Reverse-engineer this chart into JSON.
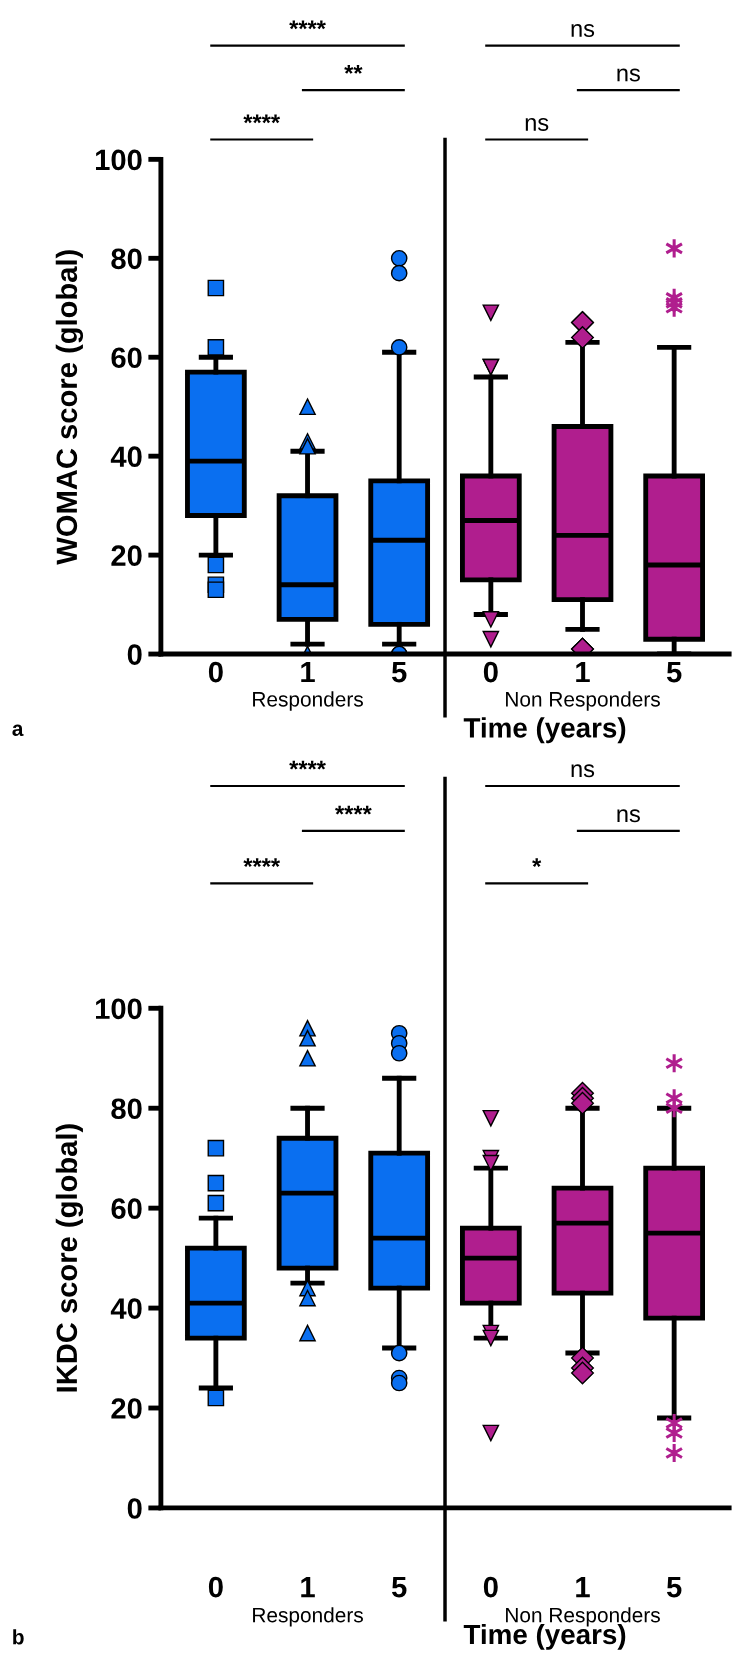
{
  "chart_data": [
    {
      "type": "box",
      "categories": [
        "0",
        "1",
        "5",
        "0",
        "1",
        "5"
      ],
      "ylabel": "WOMAC score (global)",
      "xlabel": "Time (years)",
      "ylim": [
        0,
        100
      ],
      "yticks": [
        0,
        20,
        40,
        60,
        80,
        100
      ],
      "grid": false,
      "legend": false,
      "annotations": [
        "****",
        "**",
        "****",
        "ns",
        "ns",
        "ns",
        "a",
        "Responders",
        "Non Responders"
      ],
      "series": [
        {
          "color": "#0a6ff0",
          "marker": [
            "square",
            "triangle",
            "circle",
            null,
            null,
            null
          ],
          "boxes": [
            {
              "low": 20,
              "q1": 28,
              "median": 39,
              "q3": 57,
              "high": 60,
              "outliers": [
                74,
                62,
                18,
                14,
                13
              ]
            },
            {
              "low": 2,
              "q1": 7,
              "median": 14,
              "q3": 32,
              "high": 41,
              "outliers": [
                50,
                43,
                42,
                0
              ]
            },
            {
              "low": 2,
              "q1": 6,
              "median": 23,
              "q3": 35,
              "high": 61,
              "outliers": [
                80,
                77,
                62,
                0,
                0
              ]
            },
            null,
            null,
            null
          ]
        },
        {
          "color": "#b01e8e",
          "marker": [
            null,
            null,
            null,
            "triangle_down",
            "diamond",
            "star"
          ],
          "boxes": [
            null,
            null,
            null,
            {
              "low": 8,
              "q1": 15,
              "median": 27,
              "q3": 36,
              "high": 56,
              "outliers": [
                69,
                58,
                58,
                7,
                3
              ]
            },
            {
              "low": 5,
              "q1": 11,
              "median": 24,
              "q3": 46,
              "high": 63,
              "outliers": [
                67,
                67,
                64,
                1,
                1
              ]
            },
            {
              "low": 0,
              "q1": 3,
              "median": 18,
              "q3": 36,
              "high": 62,
              "outliers": [
                82,
                72,
                71,
                70
              ]
            }
          ]
        }
      ]
    },
    {
      "type": "box",
      "categories": [
        "0",
        "1",
        "5",
        "0",
        "1",
        "5"
      ],
      "ylabel": "IKDC score (global)",
      "xlabel": "Time (years)",
      "ylim": [
        0,
        100
      ],
      "yticks": [
        0,
        20,
        40,
        60,
        80,
        100
      ],
      "grid": false,
      "legend": false,
      "annotations": [
        "****",
        "****",
        "****",
        "ns",
        "ns",
        "*",
        "b",
        "Responders",
        "Non Responders"
      ],
      "series": [
        {
          "color": "#0a6ff0",
          "marker": [
            "square",
            "triangle",
            "circle",
            null,
            null,
            null
          ],
          "boxes": [
            {
              "low": 24,
              "q1": 34,
              "median": 41,
              "q3": 52,
              "high": 58,
              "outliers": [
                72,
                65,
                61,
                22
              ]
            },
            {
              "low": 45,
              "q1": 48,
              "median": 63,
              "q3": 74,
              "high": 80,
              "outliers": [
                96,
                94,
                90,
                44,
                42,
                35
              ]
            },
            {
              "low": 32,
              "q1": 44,
              "median": 54,
              "q3": 71,
              "high": 86,
              "outliers": [
                95,
                93,
                91,
                31,
                26,
                25
              ]
            },
            null,
            null,
            null
          ]
        },
        {
          "color": "#b01e8e",
          "marker": [
            null,
            null,
            null,
            "triangle_down",
            "diamond",
            "star"
          ],
          "boxes": [
            null,
            null,
            null,
            {
              "low": 34,
              "q1": 41,
              "median": 50,
              "q3": 56,
              "high": 68,
              "outliers": [
                78,
                70,
                69,
                35,
                34,
                15
              ]
            },
            {
              "low": 31,
              "q1": 43,
              "median": 57,
              "q3": 64,
              "high": 80,
              "outliers": [
                83,
                82,
                81,
                30,
                28,
                27
              ]
            },
            {
              "low": 18,
              "q1": 38,
              "median": 55,
              "q3": 68,
              "high": 80,
              "outliers": [
                89,
                82,
                80,
                17,
                15,
                11
              ]
            }
          ]
        }
      ]
    }
  ]
}
